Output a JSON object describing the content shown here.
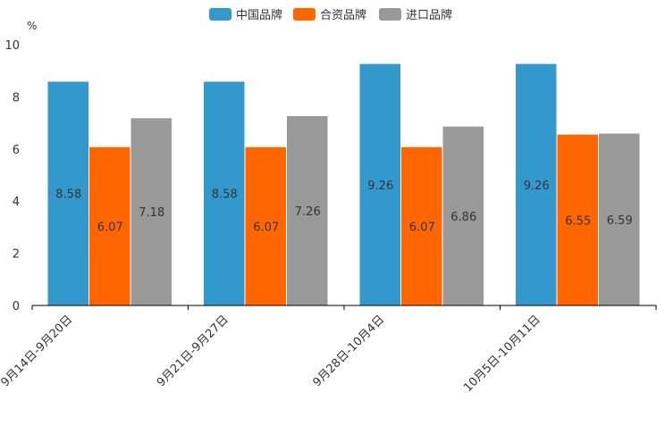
{
  "chart_data": {
    "type": "bar",
    "unit": "%",
    "ylim": [
      0,
      10
    ],
    "yticks": [
      0,
      2,
      4,
      6,
      8,
      10
    ],
    "legend_position": "top-center",
    "categories": [
      "9月14日-9月20日",
      "9月21日-9月27日",
      "9月28日-10月4日",
      "10月5日-10月11日"
    ],
    "series": [
      {
        "name": "中国品牌",
        "color": "#3399cc",
        "values": [
          8.58,
          8.58,
          9.26,
          9.26
        ]
      },
      {
        "name": "合资品牌",
        "color": "#ff6600",
        "values": [
          6.07,
          6.07,
          6.07,
          6.55
        ]
      },
      {
        "name": "进口品牌",
        "color": "#999999",
        "values": [
          7.18,
          7.26,
          6.86,
          6.59
        ]
      }
    ]
  }
}
